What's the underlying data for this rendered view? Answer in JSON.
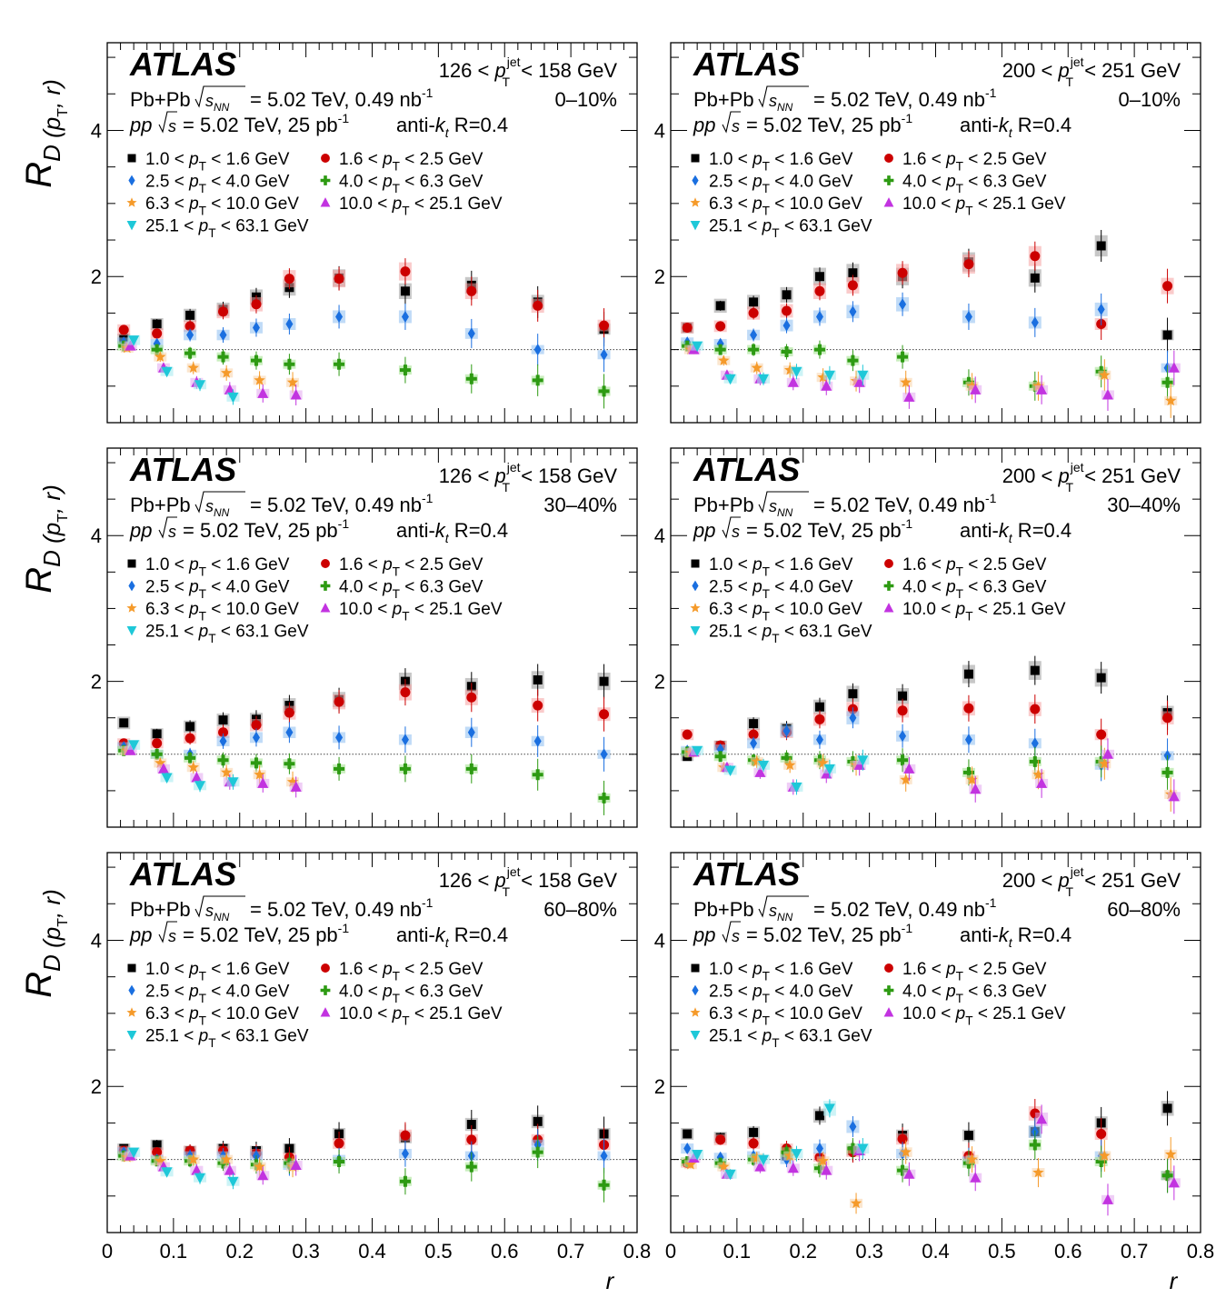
{
  "figure": {
    "experiment": "ATLAS",
    "ylabel_main": "R",
    "ylabel_sub": "D (p",
    "ylabel_subT": "T",
    "ylabel_tail": ", r)",
    "xlabel": "r",
    "pbpb_line_pre": "Pb+Pb",
    "pbpb_line_post": "= 5.02 TeV, 0.49 nb",
    "pbpb_sup": "-1",
    "pp_line_pre": "pp",
    "pp_line_post": "= 5.02 TeV, 25 pb",
    "pp_sup": "-1",
    "jet_alg": "anti-k",
    "jet_alg_sub": "t",
    "jet_R": "R=0.4",
    "legend": [
      {
        "label_pre": "1.0 <",
        "label_post": "< 1.6 GeV",
        "color": "#000000",
        "marker": "square"
      },
      {
        "label_pre": "1.6 <",
        "label_post": "< 2.5 GeV",
        "color": "#cc0000",
        "marker": "circle"
      },
      {
        "label_pre": "2.5 <",
        "label_post": "< 4.0 GeV",
        "color": "#1a6fe0",
        "marker": "diamond"
      },
      {
        "label_pre": "4.0 <",
        "label_post": "< 6.3 GeV",
        "color": "#2d9a12",
        "marker": "cross"
      },
      {
        "label_pre": "6.3 <",
        "label_post": "< 10.0 GeV",
        "color": "#f59a2a",
        "marker": "star"
      },
      {
        "label_pre": "10.0 <",
        "label_post": "< 25.1 GeV",
        "color": "#c233e0",
        "marker": "triangle-up"
      },
      {
        "label_pre": "25.1 <",
        "label_post": "< 63.1 GeV",
        "color": "#1ec8d8",
        "marker": "triangle-down"
      }
    ]
  },
  "chart_data": [
    {
      "type": "scatter",
      "jet_pt": "126 < p_T^jet < 158 GeV",
      "centrality": "0–10%",
      "xlim": [
        0,
        0.8
      ],
      "ylim": [
        0,
        5.2
      ],
      "x_ticks": [
        "0",
        "0.1",
        "0.2",
        "0.3",
        "0.4",
        "0.5",
        "0.6",
        "0.7",
        "0.8"
      ],
      "y_ticks": [
        "2",
        "4"
      ],
      "x": [
        0.025,
        0.075,
        0.125,
        0.175,
        0.225,
        0.275,
        0.35,
        0.45,
        0.55,
        0.65,
        0.75
      ],
      "series": [
        {
          "values": [
            1.15,
            1.35,
            1.47,
            1.55,
            1.72,
            1.85,
            1.98,
            1.8,
            1.88,
            1.65,
            1.28
          ]
        },
        {
          "values": [
            1.27,
            1.22,
            1.32,
            1.52,
            1.62,
            1.97,
            1.97,
            2.07,
            1.8,
            1.6,
            1.33
          ]
        },
        {
          "values": [
            1.1,
            1.08,
            1.2,
            1.2,
            1.3,
            1.35,
            1.45,
            1.45,
            1.22,
            1.0,
            0.93
          ]
        },
        {
          "values": [
            1.05,
            1.0,
            0.95,
            0.9,
            0.85,
            0.8,
            0.8,
            0.72,
            0.6,
            0.58,
            0.43
          ]
        },
        {
          "values": [
            1.02,
            0.9,
            0.75,
            0.68,
            0.58,
            0.55
          ]
        },
        {
          "values": [
            1.05,
            0.75,
            0.55,
            0.45,
            0.4,
            0.38
          ]
        },
        {
          "values": [
            1.13,
            0.7,
            0.52,
            0.35
          ]
        }
      ]
    },
    {
      "type": "scatter",
      "jet_pt": "200 < p_T^jet < 251 GeV",
      "centrality": "0–10%",
      "xlim": [
        0,
        0.8
      ],
      "ylim": [
        0,
        5.2
      ],
      "x_ticks": [
        "0",
        "0.1",
        "0.2",
        "0.3",
        "0.4",
        "0.5",
        "0.6",
        "0.7",
        "0.8"
      ],
      "y_ticks": [
        "2",
        "4"
      ],
      "x": [
        0.025,
        0.075,
        0.125,
        0.175,
        0.225,
        0.275,
        0.35,
        0.45,
        0.55,
        0.65,
        0.75
      ],
      "series": [
        {
          "values": [
            1.3,
            1.6,
            1.65,
            1.75,
            2.0,
            2.05,
            2.0,
            2.2,
            1.98,
            2.42,
            1.2
          ]
        },
        {
          "values": [
            1.3,
            1.32,
            1.5,
            1.53,
            1.8,
            1.88,
            2.05,
            2.17,
            2.28,
            1.35,
            1.87
          ]
        },
        {
          "values": [
            1.1,
            1.08,
            1.2,
            1.33,
            1.45,
            1.52,
            1.62,
            1.45,
            1.37,
            1.55,
            0.75
          ]
        },
        {
          "values": [
            1.05,
            1.0,
            1.0,
            0.97,
            1.0,
            0.85,
            0.9,
            0.55,
            0.5,
            0.7,
            0.55
          ]
        },
        {
          "values": [
            1.0,
            0.85,
            0.75,
            0.72,
            0.62,
            0.57,
            0.55,
            0.5,
            0.5,
            0.65,
            0.3
          ]
        },
        {
          "values": [
            1.0,
            0.65,
            0.6,
            0.55,
            0.5,
            0.55,
            0.35,
            0.45,
            0.45,
            0.38,
            0.75
          ]
        },
        {
          "values": [
            1.05,
            0.6,
            0.6,
            0.7,
            0.65,
            0.65
          ]
        }
      ]
    },
    {
      "type": "scatter",
      "jet_pt": "126 < p_T^jet < 158 GeV",
      "centrality": "30–40%",
      "xlim": [
        0,
        0.8
      ],
      "ylim": [
        0,
        5.2
      ],
      "x_ticks": [
        "0",
        "0.1",
        "0.2",
        "0.3",
        "0.4",
        "0.5",
        "0.6",
        "0.7",
        "0.8"
      ],
      "y_ticks": [
        "2",
        "4"
      ],
      "x": [
        0.025,
        0.075,
        0.125,
        0.175,
        0.225,
        0.275,
        0.35,
        0.45,
        0.55,
        0.65,
        0.75
      ],
      "series": [
        {
          "values": [
            1.43,
            1.28,
            1.38,
            1.47,
            1.48,
            1.67,
            1.75,
            2.0,
            1.93,
            2.02,
            2.0
          ]
        },
        {
          "values": [
            1.15,
            1.15,
            1.22,
            1.3,
            1.4,
            1.57,
            1.72,
            1.85,
            1.78,
            1.67,
            1.55
          ]
        },
        {
          "values": [
            1.1,
            1.0,
            1.0,
            1.18,
            1.23,
            1.3,
            1.23,
            1.2,
            1.3,
            1.18,
            1.0
          ]
        },
        {
          "values": [
            1.05,
            1.0,
            0.95,
            0.92,
            0.88,
            0.87,
            0.8,
            0.8,
            0.8,
            0.72,
            0.4
          ]
        },
        {
          "values": [
            1.05,
            0.88,
            0.82,
            0.75,
            0.72,
            0.62
          ]
        },
        {
          "values": [
            1.05,
            0.8,
            0.68,
            0.62,
            0.6,
            0.55
          ]
        },
        {
          "values": [
            1.13,
            0.68,
            0.57,
            0.62
          ]
        }
      ]
    },
    {
      "type": "scatter",
      "jet_pt": "200 < p_T^jet < 251 GeV",
      "centrality": "30–40%",
      "xlim": [
        0,
        0.8
      ],
      "ylim": [
        0,
        5.2
      ],
      "x_ticks": [
        "0",
        "0.1",
        "0.2",
        "0.3",
        "0.4",
        "0.5",
        "0.6",
        "0.7",
        "0.8"
      ],
      "y_ticks": [
        "2",
        "4"
      ],
      "x": [
        0.025,
        0.075,
        0.125,
        0.175,
        0.225,
        0.275,
        0.35,
        0.45,
        0.55,
        0.65,
        0.75
      ],
      "series": [
        {
          "values": [
            0.97,
            1.12,
            1.42,
            1.35,
            1.65,
            1.83,
            1.8,
            2.1,
            2.15,
            2.05,
            1.57
          ]
        },
        {
          "values": [
            1.27,
            1.12,
            1.27,
            1.3,
            1.48,
            1.62,
            1.6,
            1.63,
            1.62,
            1.27,
            1.5
          ]
        },
        {
          "values": [
            1.05,
            1.07,
            1.15,
            1.32,
            1.2,
            1.5,
            1.25,
            1.2,
            1.15,
            0.85,
            0.98
          ]
        },
        {
          "values": [
            1.03,
            0.97,
            0.92,
            0.95,
            0.92,
            0.9,
            0.92,
            0.75,
            0.9,
            0.9,
            0.75
          ]
        },
        {
          "values": [
            1.02,
            0.82,
            0.9,
            0.85,
            0.88,
            0.85,
            0.65,
            0.65,
            0.72,
            0.87,
            0.45
          ]
        },
        {
          "values": [
            1.03,
            0.82,
            0.75,
            0.55,
            0.73,
            0.85,
            0.8,
            0.52,
            0.6,
            1.0,
            0.42
          ]
        },
        {
          "values": [
            1.05,
            0.78,
            0.85,
            0.55,
            0.8,
            0.92
          ]
        }
      ]
    },
    {
      "type": "scatter",
      "jet_pt": "126 < p_T^jet < 158 GeV",
      "centrality": "60–80%",
      "xlim": [
        0,
        0.8
      ],
      "ylim": [
        0,
        5.2
      ],
      "x_ticks": [
        "0",
        "0.1",
        "0.2",
        "0.3",
        "0.4",
        "0.5",
        "0.6",
        "0.7",
        "0.8"
      ],
      "y_ticks": [
        "2",
        "4"
      ],
      "x": [
        0.025,
        0.075,
        0.125,
        0.175,
        0.225,
        0.275,
        0.35,
        0.45,
        0.55,
        0.65,
        0.75
      ],
      "series": [
        {
          "values": [
            1.15,
            1.2,
            1.12,
            1.15,
            1.12,
            1.15,
            1.35,
            1.3,
            1.48,
            1.52,
            1.35
          ]
        },
        {
          "values": [
            1.12,
            1.1,
            1.12,
            1.12,
            1.08,
            1.03,
            1.22,
            1.33,
            1.27,
            1.27,
            1.2
          ]
        },
        {
          "values": [
            1.1,
            1.0,
            1.05,
            1.05,
            1.05,
            0.92,
            1.0,
            1.08,
            1.05,
            1.2,
            1.05
          ]
        },
        {
          "values": [
            1.05,
            0.98,
            0.98,
            0.95,
            0.93,
            0.95,
            0.97,
            0.7,
            0.9,
            1.1,
            0.65
          ]
        },
        {
          "values": [
            1.03,
            0.98,
            1.0,
            1.0,
            0.9,
            0.9
          ]
        },
        {
          "values": [
            1.05,
            0.9,
            0.85,
            0.85,
            0.78,
            0.92
          ]
        },
        {
          "values": [
            1.1,
            0.83,
            0.75,
            0.7
          ]
        }
      ]
    },
    {
      "type": "scatter",
      "jet_pt": "200 < p_T^jet < 251 GeV",
      "centrality": "60–80%",
      "xlim": [
        0,
        0.8
      ],
      "ylim": [
        0,
        5.2
      ],
      "x_ticks": [
        "0",
        "0.1",
        "0.2",
        "0.3",
        "0.4",
        "0.5",
        "0.6",
        "0.7",
        "0.8"
      ],
      "y_ticks": [
        "2",
        "4"
      ],
      "x": [
        0.025,
        0.075,
        0.125,
        0.175,
        0.225,
        0.275,
        0.35,
        0.45,
        0.55,
        0.65,
        0.75
      ],
      "series": [
        {
          "values": [
            1.35,
            1.3,
            1.37,
            1.05,
            1.6,
            1.12,
            1.33,
            1.33,
            1.38,
            1.5,
            1.7
          ]
        },
        {
          "values": [
            0.95,
            1.27,
            1.22,
            1.15,
            1.03,
            1.1,
            1.28,
            1.05,
            1.63,
            1.35,
            0.78
          ]
        },
        {
          "values": [
            1.15,
            1.03,
            1.05,
            1.0,
            1.15,
            1.45,
            1.08,
            0.98,
            1.38,
            1.05,
            0.78
          ]
        },
        {
          "values": [
            0.97,
            0.95,
            1.0,
            1.1,
            0.88,
            1.15,
            0.85,
            0.95,
            1.2,
            0.97,
            0.78
          ]
        },
        {
          "values": [
            0.93,
            0.9,
            1.02,
            1.05,
            0.98,
            0.4,
            1.1,
            1.0,
            0.82,
            1.05,
            1.07
          ]
        },
        {
          "values": [
            1.02,
            0.8,
            0.9,
            0.88,
            0.85,
            1.12,
            0.8,
            0.75,
            1.55,
            0.45,
            0.68
          ]
        },
        {
          "values": [
            1.07,
            0.8,
            1.0,
            1.08,
            1.7,
            1.15
          ]
        }
      ]
    }
  ]
}
